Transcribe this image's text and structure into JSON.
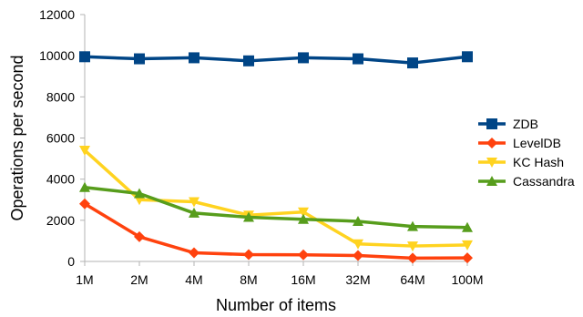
{
  "chart_data": {
    "type": "line",
    "title": "",
    "xlabel": "Number of items",
    "ylabel": "Operations per second",
    "ylim": [
      0,
      12000
    ],
    "yticks": [
      "0",
      "2000",
      "4000",
      "6000",
      "8000",
      "10000",
      "12000"
    ],
    "categories": [
      "1M",
      "2M",
      "4M",
      "8M",
      "16M",
      "32M",
      "64M",
      "100M"
    ],
    "grid": false,
    "legend_position": "right",
    "series": [
      {
        "name": "ZDB",
        "color": "#004586",
        "marker": "square",
        "values": [
          9950,
          9850,
          9900,
          9750,
          9900,
          9850,
          9650,
          9950
        ]
      },
      {
        "name": "LevelDB",
        "color": "#ff420e",
        "marker": "diamond",
        "values": [
          2800,
          1200,
          420,
          330,
          320,
          290,
          160,
          170
        ]
      },
      {
        "name": "KC Hash",
        "color": "#ffd320",
        "marker": "triangle-down",
        "values": [
          5400,
          3000,
          2900,
          2250,
          2400,
          850,
          750,
          800
        ]
      },
      {
        "name": "Cassandra",
        "color": "#579d1c",
        "marker": "triangle-up",
        "values": [
          3600,
          3300,
          2350,
          2150,
          2050,
          1950,
          1700,
          1650
        ]
      }
    ]
  }
}
